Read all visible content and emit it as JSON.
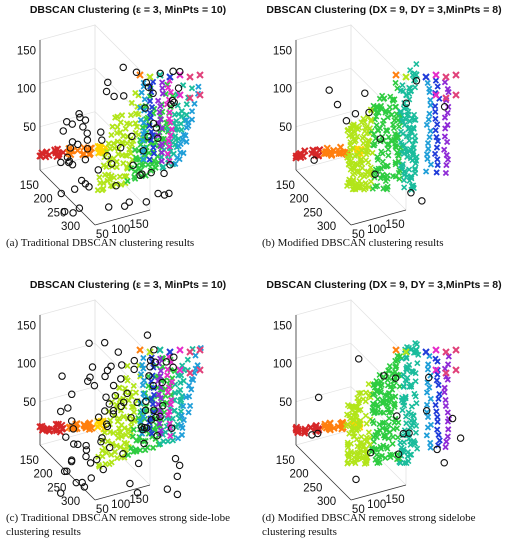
{
  "chart_data": [
    {
      "type": "scatter",
      "title": "DBSCAN Clustering (ε = 3, MinPts = 10)",
      "caption": "(a)  Traditional DBSCAN clustering results",
      "z_ticks": [
        "150",
        "100",
        "50"
      ],
      "y_ticks": [
        "150",
        "200",
        "250",
        "300"
      ],
      "x_ticks": [
        "50",
        "100",
        "150"
      ],
      "noise_marker": "black open circles",
      "cluster_marker": "colored crosses",
      "colormap": [
        "#d62728",
        "#ff7f0e",
        "#ffd400",
        "#b2e51a",
        "#2ecc40",
        "#1abc9c",
        "#1f9ed8",
        "#1f3bd8",
        "#8e2ad6",
        "#e62ac8",
        "#e0407a"
      ]
    },
    {
      "type": "scatter",
      "title": "DBSCAN Clustering (DX = 9, DY = 3,MinPts = 8)",
      "caption": "(b)  Modified DBSCAN clustering results",
      "z_ticks": [
        "150",
        "100",
        "50"
      ],
      "y_ticks": [
        "150",
        "200",
        "250",
        "300"
      ],
      "x_ticks": [
        "50",
        "100",
        "150"
      ],
      "noise_marker": "black open circles",
      "cluster_marker": "colored crosses",
      "colormap": [
        "#d62728",
        "#ff7f0e",
        "#ffd400",
        "#b2e51a",
        "#2ecc40",
        "#1abc9c",
        "#1f9ed8",
        "#1f3bd8",
        "#8e2ad6",
        "#e62ac8",
        "#e0407a"
      ]
    },
    {
      "type": "scatter",
      "title": "DBSCAN Clustering (ε = 3, MinPts = 10)",
      "caption": "(c)  Traditional DBSCAN removes strong side-lobe clustering results",
      "z_ticks": [
        "150",
        "100",
        "50"
      ],
      "y_ticks": [
        "150",
        "200",
        "250",
        "300"
      ],
      "x_ticks": [
        "50",
        "100",
        "150"
      ],
      "noise_marker": "black open circles",
      "cluster_marker": "colored crosses",
      "colormap": [
        "#d62728",
        "#ff7f0e",
        "#ffd400",
        "#b2e51a",
        "#2ecc40",
        "#1abc9c",
        "#1f9ed8",
        "#1f3bd8",
        "#8e2ad6",
        "#e62ac8",
        "#e0407a"
      ]
    },
    {
      "type": "scatter",
      "title": "DBSCAN Clustering (DX = 9, DY = 3,MinPts = 8)",
      "caption": "(d)  Modified DBSCAN removes strong sidelobe clustering results",
      "z_ticks": [
        "150",
        "100",
        "50"
      ],
      "y_ticks": [
        "150",
        "200",
        "250",
        "300"
      ],
      "x_ticks": [
        "50",
        "100",
        "150"
      ],
      "noise_marker": "black open circles",
      "cluster_marker": "colored crosses",
      "colormap": [
        "#d62728",
        "#ff7f0e",
        "#ffd400",
        "#b2e51a",
        "#2ecc40",
        "#1abc9c",
        "#1f9ed8",
        "#1f3bd8",
        "#8e2ad6",
        "#e62ac8",
        "#e0407a"
      ]
    }
  ]
}
